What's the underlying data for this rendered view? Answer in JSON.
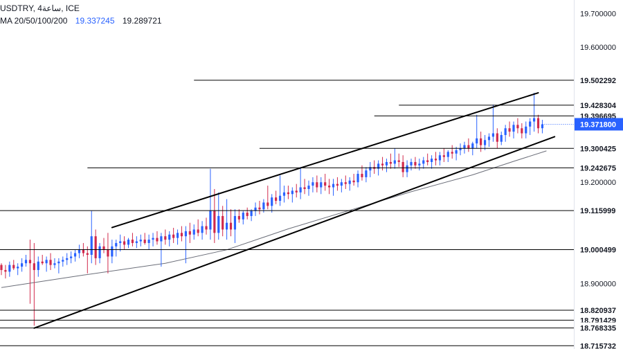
{
  "header": {
    "symbol_line": "USDTRY, 4ساعة, ICE",
    "ma_label": "MA 20/50/100/200",
    "ma_value_1": "19.337245",
    "ma_value_2": "19.289721"
  },
  "colors": {
    "up": "#2962ff",
    "down": "#d1294b",
    "ma": "#6a6d78",
    "lines": "#000000",
    "current_price_bg": "#2962ff",
    "axis_text": "#131722"
  },
  "chart_data": {
    "type": "candlestick",
    "y_range": [
      18.706,
      19.74
    ],
    "y_ticks": [
      19.7,
      19.6,
      19.2,
      18.9
    ],
    "y_tick_labels": [
      "19.700000",
      "19.600000",
      "19.200000",
      "18.900000"
    ],
    "level_labels": [
      "19.502292",
      "19.428304",
      "19.396695",
      "19.300425",
      "19.242675",
      "19.115999",
      "19.000499",
      "18.820937",
      "18.791429",
      "18.768335",
      "18.715732"
    ],
    "current_price": {
      "value": 19.3718,
      "label": "19.371800"
    },
    "horizontal_levels": [
      {
        "value": 19.502292,
        "from_bar": 47
      },
      {
        "value": 19.428304,
        "from_bar": 97
      },
      {
        "value": 19.396695,
        "from_bar": 91
      },
      {
        "value": 19.300425,
        "from_bar": 63
      },
      {
        "value": 19.242675,
        "from_bar": 21
      },
      {
        "value": 19.115999,
        "from_bar": 0
      },
      {
        "value": 19.000499,
        "from_bar": 0
      },
      {
        "value": 18.820937,
        "from_bar": 0
      },
      {
        "value": 18.791429,
        "from_bar": 0
      },
      {
        "value": 18.768335,
        "from_bar": 0
      },
      {
        "value": 18.715732,
        "from_bar": 0
      }
    ],
    "channel_lines": [
      {
        "from": {
          "bar": 27,
          "value": 19.066
        },
        "to": {
          "bar": 131,
          "value": 19.465
        }
      },
      {
        "from": {
          "bar": 8,
          "value": 18.768
        },
        "to": {
          "bar": 135,
          "value": 19.335
        }
      }
    ],
    "moving_average": {
      "name": "MA 20/50/100/200",
      "points": [
        [
          0,
          18.888
        ],
        [
          20,
          18.925
        ],
        [
          40,
          18.96
        ],
        [
          55,
          19.0
        ],
        [
          70,
          19.062
        ],
        [
          85,
          19.117
        ],
        [
          100,
          19.172
        ],
        [
          115,
          19.222
        ],
        [
          125,
          19.262
        ],
        [
          133,
          19.293
        ]
      ]
    },
    "candles": {
      "count": 133,
      "last_close": 19.3718,
      "ohlc": [
        [
          18.955,
          18.96,
          18.925,
          18.94
        ],
        [
          18.94,
          18.955,
          18.915,
          18.935
        ],
        [
          18.935,
          18.965,
          18.92,
          18.955
        ],
        [
          18.955,
          18.97,
          18.94,
          18.945
        ],
        [
          18.945,
          18.96,
          18.925,
          18.95
        ],
        [
          18.95,
          18.975,
          18.935,
          18.96
        ],
        [
          18.96,
          18.985,
          18.95,
          18.97
        ],
        [
          18.97,
          19.03,
          18.84,
          18.96
        ],
        [
          18.96,
          19.02,
          18.775,
          18.94
        ],
        [
          18.94,
          18.98,
          18.92,
          18.965
        ],
        [
          18.965,
          18.985,
          18.955,
          18.96
        ],
        [
          18.96,
          18.98,
          18.935,
          18.97
        ],
        [
          18.97,
          18.99,
          18.94,
          18.955
        ],
        [
          18.955,
          18.975,
          18.945,
          18.96
        ],
        [
          18.96,
          18.975,
          18.93,
          18.965
        ],
        [
          18.965,
          18.98,
          18.95,
          18.97
        ],
        [
          18.97,
          18.99,
          18.955,
          18.975
        ],
        [
          18.975,
          18.995,
          18.96,
          18.98
        ],
        [
          18.98,
          19.0,
          18.965,
          18.99
        ],
        [
          18.99,
          19.015,
          18.975,
          19.0
        ],
        [
          19.0,
          19.02,
          18.98,
          18.99
        ],
        [
          18.99,
          19.01,
          18.93,
          18.985
        ],
        [
          18.985,
          19.115,
          18.96,
          19.04
        ],
        [
          19.04,
          19.06,
          18.955,
          18.975
        ],
        [
          18.975,
          19.02,
          18.96,
          19.01
        ],
        [
          19.01,
          19.035,
          18.99,
          19.0
        ],
        [
          19.0,
          19.05,
          18.93,
          18.98
        ],
        [
          18.98,
          19.03,
          18.96,
          19.01
        ],
        [
          19.01,
          19.03,
          18.98,
          19.02
        ],
        [
          19.02,
          19.045,
          18.995,
          19.025
        ],
        [
          19.025,
          19.04,
          19.0,
          19.015
        ],
        [
          19.015,
          19.035,
          19.005,
          19.03
        ],
        [
          19.03,
          19.05,
          19.01,
          19.02
        ],
        [
          19.02,
          19.04,
          19.005,
          19.025
        ],
        [
          19.025,
          19.045,
          19.01,
          19.03
        ],
        [
          19.03,
          19.05,
          19.015,
          19.02
        ],
        [
          19.02,
          19.045,
          19.0,
          19.03
        ],
        [
          19.03,
          19.05,
          19.01,
          19.035
        ],
        [
          19.035,
          19.055,
          19.015,
          19.025
        ],
        [
          19.025,
          19.05,
          18.95,
          19.04
        ],
        [
          19.04,
          19.06,
          19.015,
          19.03
        ],
        [
          19.03,
          19.055,
          19.01,
          19.045
        ],
        [
          19.045,
          19.065,
          19.02,
          19.035
        ],
        [
          19.035,
          19.06,
          19.015,
          19.05
        ],
        [
          19.05,
          19.07,
          19.025,
          19.04
        ],
        [
          19.04,
          19.07,
          18.96,
          19.055
        ],
        [
          19.055,
          19.08,
          19.02,
          19.045
        ],
        [
          19.045,
          19.075,
          19.03,
          19.06
        ],
        [
          19.06,
          19.09,
          19.04,
          19.05
        ],
        [
          19.05,
          19.085,
          19.03,
          19.07
        ],
        [
          19.07,
          19.095,
          19.045,
          19.06
        ],
        [
          19.06,
          19.24,
          19.03,
          19.115
        ],
        [
          19.115,
          19.18,
          19.02,
          19.05
        ],
        [
          19.05,
          19.17,
          19.03,
          19.1
        ],
        [
          19.1,
          19.13,
          19.04,
          19.06
        ],
        [
          19.06,
          19.15,
          19.03,
          19.08
        ],
        [
          19.08,
          19.12,
          19.04,
          19.06
        ],
        [
          19.06,
          19.12,
          19.02,
          19.1
        ],
        [
          19.1,
          19.12,
          19.08,
          19.09
        ],
        [
          19.09,
          19.115,
          19.075,
          19.11
        ],
        [
          19.11,
          19.125,
          19.09,
          19.1
        ],
        [
          19.1,
          19.12,
          19.085,
          19.115
        ],
        [
          19.115,
          19.14,
          19.1,
          19.125
        ],
        [
          19.125,
          19.145,
          19.105,
          19.12
        ],
        [
          19.12,
          19.15,
          19.11,
          19.14
        ],
        [
          19.14,
          19.19,
          19.12,
          19.13
        ],
        [
          19.13,
          19.165,
          19.11,
          19.155
        ],
        [
          19.155,
          19.175,
          19.135,
          19.145
        ],
        [
          19.145,
          19.22,
          19.13,
          19.16
        ],
        [
          19.16,
          19.19,
          19.14,
          19.17
        ],
        [
          19.17,
          19.19,
          19.15,
          19.165
        ],
        [
          19.165,
          19.185,
          19.14,
          19.175
        ],
        [
          19.175,
          19.195,
          19.155,
          19.17
        ],
        [
          19.17,
          19.245,
          19.15,
          19.185
        ],
        [
          19.185,
          19.21,
          19.165,
          19.18
        ],
        [
          19.18,
          19.205,
          19.16,
          19.19
        ],
        [
          19.19,
          19.215,
          19.17,
          19.2
        ],
        [
          19.2,
          19.22,
          19.17,
          19.185
        ],
        [
          19.185,
          19.215,
          19.165,
          19.2
        ],
        [
          19.2,
          19.225,
          19.175,
          19.19
        ],
        [
          19.19,
          19.21,
          19.165,
          19.185
        ],
        [
          19.185,
          19.21,
          19.16,
          19.195
        ],
        [
          19.195,
          19.215,
          19.175,
          19.19
        ],
        [
          19.19,
          19.21,
          19.17,
          19.2
        ],
        [
          19.2,
          19.22,
          19.18,
          19.195
        ],
        [
          19.195,
          19.215,
          19.175,
          19.205
        ],
        [
          19.205,
          19.225,
          19.19,
          19.2
        ],
        [
          19.2,
          19.235,
          19.185,
          19.225
        ],
        [
          19.225,
          19.25,
          19.205,
          19.215
        ],
        [
          19.215,
          19.245,
          19.2,
          19.235
        ],
        [
          19.235,
          19.26,
          19.215,
          19.245
        ],
        [
          19.245,
          19.265,
          19.225,
          19.24
        ],
        [
          19.24,
          19.265,
          19.22,
          19.255
        ],
        [
          19.255,
          19.275,
          19.235,
          19.25
        ],
        [
          19.25,
          19.27,
          19.23,
          19.26
        ],
        [
          19.26,
          19.285,
          19.24,
          19.255
        ],
        [
          19.255,
          19.3,
          19.24,
          19.265
        ],
        [
          19.265,
          19.285,
          19.245,
          19.26
        ],
        [
          19.26,
          19.28,
          19.215,
          19.23
        ],
        [
          19.23,
          19.265,
          19.215,
          19.25
        ],
        [
          19.25,
          19.27,
          19.235,
          19.26
        ],
        [
          19.26,
          19.275,
          19.24,
          19.25
        ],
        [
          19.25,
          19.27,
          19.235,
          19.255
        ],
        [
          19.255,
          19.275,
          19.24,
          19.265
        ],
        [
          19.265,
          19.285,
          19.25,
          19.26
        ],
        [
          19.26,
          19.28,
          19.24,
          19.27
        ],
        [
          19.27,
          19.29,
          19.25,
          19.265
        ],
        [
          19.265,
          19.29,
          19.25,
          19.28
        ],
        [
          19.28,
          19.3,
          19.26,
          19.275
        ],
        [
          19.275,
          19.295,
          19.26,
          19.29
        ],
        [
          19.29,
          19.31,
          19.27,
          19.285
        ],
        [
          19.285,
          19.305,
          19.265,
          19.295
        ],
        [
          19.295,
          19.315,
          19.28,
          19.3
        ],
        [
          19.3,
          19.32,
          19.285,
          19.31
        ],
        [
          19.31,
          19.33,
          19.29,
          19.3
        ],
        [
          19.3,
          19.32,
          19.28,
          19.315
        ],
        [
          19.315,
          19.4,
          19.3,
          19.33
        ],
        [
          19.33,
          19.35,
          19.29,
          19.31
        ],
        [
          19.31,
          19.34,
          19.295,
          19.325
        ],
        [
          19.325,
          19.345,
          19.305,
          19.335
        ],
        [
          19.335,
          19.43,
          19.32,
          19.345
        ],
        [
          19.345,
          19.36,
          19.3,
          19.32
        ],
        [
          19.32,
          19.35,
          19.31,
          19.34
        ],
        [
          19.34,
          19.37,
          19.32,
          19.36
        ],
        [
          19.36,
          19.38,
          19.335,
          19.35
        ],
        [
          19.35,
          19.38,
          19.33,
          19.37
        ],
        [
          19.37,
          19.39,
          19.345,
          19.36
        ],
        [
          19.36,
          19.375,
          19.33,
          19.345
        ],
        [
          19.345,
          19.38,
          19.33,
          19.365
        ],
        [
          19.365,
          19.39,
          19.34,
          19.38
        ],
        [
          19.38,
          19.465,
          19.35,
          19.39
        ],
        [
          19.39,
          19.4,
          19.345,
          19.36
        ],
        [
          19.36,
          19.385,
          19.345,
          19.3718
        ]
      ]
    }
  }
}
